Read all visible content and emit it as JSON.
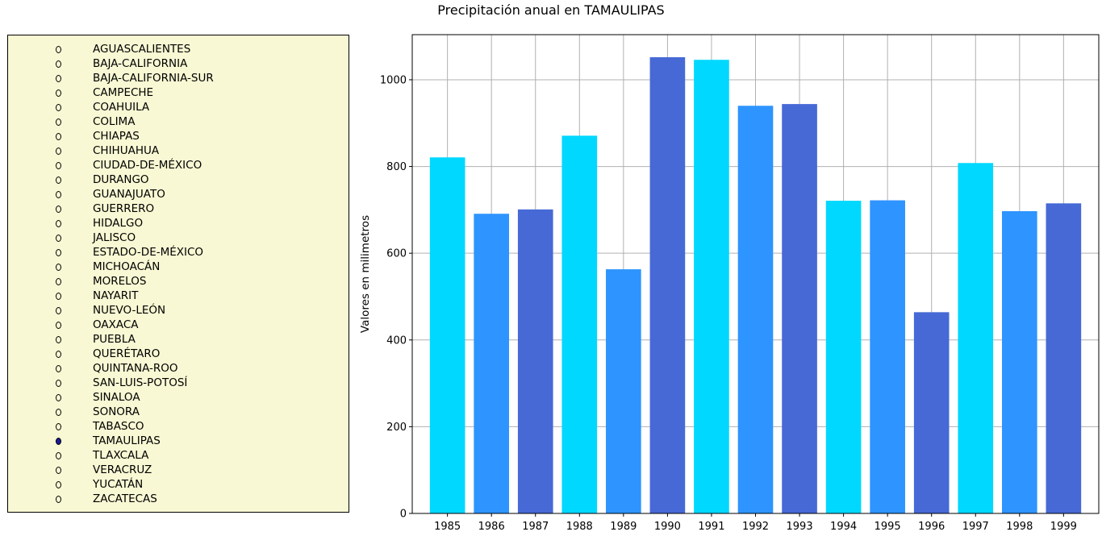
{
  "figure": {
    "title": "Precipitación anual en TAMAULIPAS"
  },
  "radio": {
    "selected": "TAMAULIPAS",
    "options": [
      "AGUASCALIENTES",
      "BAJA-CALIFORNIA",
      "BAJA-CALIFORNIA-SUR",
      "CAMPECHE",
      "COAHUILA",
      "COLIMA",
      "CHIAPAS",
      "CHIHUAHUA",
      "CIUDAD-DE-MÉXICO",
      "DURANGO",
      "GUANAJUATO",
      "GUERRERO",
      "HIDALGO",
      "JALISCO",
      "ESTADO-DE-MÉXICO",
      "MICHOACÁN",
      "MORELOS",
      "NAYARIT",
      "NUEVO-LEÓN",
      "OAXACA",
      "PUEBLA",
      "QUERÉTARO",
      "QUINTANA-ROO",
      "SAN-LUIS-POTOSÍ",
      "SINALOA",
      "SONORA",
      "TABASCO",
      "TAMAULIPAS",
      "TLAXCALA",
      "VERACRUZ",
      "YUCATÁN",
      "ZACATECAS"
    ]
  },
  "chart_data": {
    "type": "bar",
    "title": "Precipitación anual en TAMAULIPAS",
    "xlabel": "",
    "ylabel": "Valores en milimetros",
    "categories": [
      "1985",
      "1986",
      "1987",
      "1988",
      "1989",
      "1990",
      "1991",
      "1992",
      "1993",
      "1994",
      "1995",
      "1996",
      "1997",
      "1998",
      "1999"
    ],
    "values": [
      821,
      691,
      701,
      871,
      563,
      1052,
      1046,
      940,
      944,
      721,
      722,
      464,
      808,
      697,
      715
    ],
    "bar_colors": [
      "#00d8ff",
      "#2e94ff",
      "#4669d6",
      "#00d8ff",
      "#2e94ff",
      "#4669d6",
      "#00d8ff",
      "#2e94ff",
      "#4669d6",
      "#00d8ff",
      "#2e94ff",
      "#4669d6",
      "#00d8ff",
      "#2e94ff",
      "#4669d6"
    ],
    "ylim": [
      0,
      1104
    ],
    "yticks": [
      0,
      200,
      400,
      600,
      800,
      1000
    ],
    "grid": true,
    "legend": "none"
  }
}
